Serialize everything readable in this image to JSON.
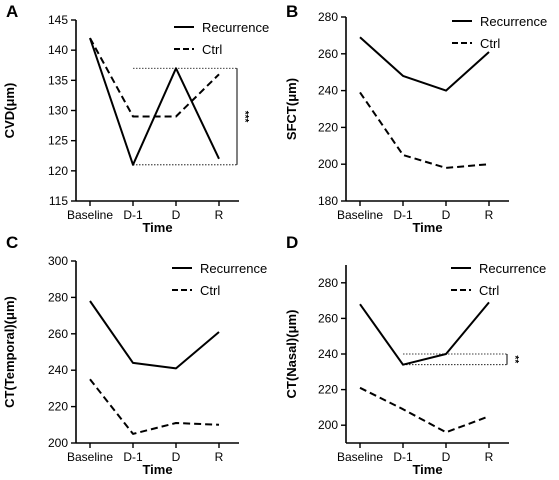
{
  "chart_data": [
    {
      "panel": "A",
      "type": "line",
      "categories": [
        "Baseline",
        "D-1",
        "D",
        "R"
      ],
      "series": [
        {
          "name": "Recurrence",
          "values": [
            142,
            121,
            137,
            122
          ],
          "line_style": "solid"
        },
        {
          "name": "Ctrl",
          "values": [
            142,
            129,
            129,
            136
          ],
          "line_style": "dashed"
        }
      ],
      "xlabel": "Time",
      "ylabel": "CVD(μm)",
      "ylim": [
        115,
        145
      ],
      "yticks": [
        115,
        120,
        125,
        130,
        135,
        140,
        145
      ],
      "legend": "top-right",
      "annotation": {
        "text": "***",
        "between": [
          121,
          137
        ],
        "from_category": "D-1"
      }
    },
    {
      "panel": "B",
      "type": "line",
      "categories": [
        "Baseline",
        "D-1",
        "D",
        "R"
      ],
      "series": [
        {
          "name": "Recurrence",
          "values": [
            269,
            248,
            240,
            261
          ],
          "line_style": "solid"
        },
        {
          "name": "Ctrl",
          "values": [
            239,
            205,
            198,
            200
          ],
          "line_style": "dashed"
        }
      ],
      "xlabel": "Time",
      "ylabel": "SFCT(μm)",
      "ylim": [
        180,
        280
      ],
      "yticks": [
        180,
        200,
        220,
        240,
        260,
        280
      ],
      "legend": "top-right"
    },
    {
      "panel": "C",
      "type": "line",
      "categories": [
        "Baseline",
        "D-1",
        "D",
        "R"
      ],
      "series": [
        {
          "name": "Recurrence",
          "values": [
            278,
            244,
            241,
            261
          ],
          "line_style": "solid"
        },
        {
          "name": "Ctrl",
          "values": [
            235,
            205,
            211,
            210
          ],
          "line_style": "dashed"
        }
      ],
      "xlabel": "Time",
      "ylabel": "CT(Temporal)(μm)",
      "ylim": [
        200,
        300
      ],
      "yticks": [
        200,
        220,
        240,
        260,
        280,
        300
      ],
      "legend": "top-right"
    },
    {
      "panel": "D",
      "type": "line",
      "categories": [
        "Baseline",
        "D-1",
        "D",
        "R"
      ],
      "series": [
        {
          "name": "Recurrence",
          "values": [
            268,
            234,
            240,
            269
          ],
          "line_style": "solid"
        },
        {
          "name": "Ctrl",
          "values": [
            221,
            209,
            196,
            205
          ],
          "line_style": "dashed"
        }
      ],
      "xlabel": "Time",
      "ylabel": "CT(Nasal)(μm)",
      "ylim": [
        190,
        290
      ],
      "yticks": [
        200,
        220,
        240,
        260,
        280
      ],
      "legend": "top-right",
      "annotation": {
        "text": "**",
        "between": [
          234,
          240
        ],
        "from_category": "D-1"
      }
    }
  ]
}
